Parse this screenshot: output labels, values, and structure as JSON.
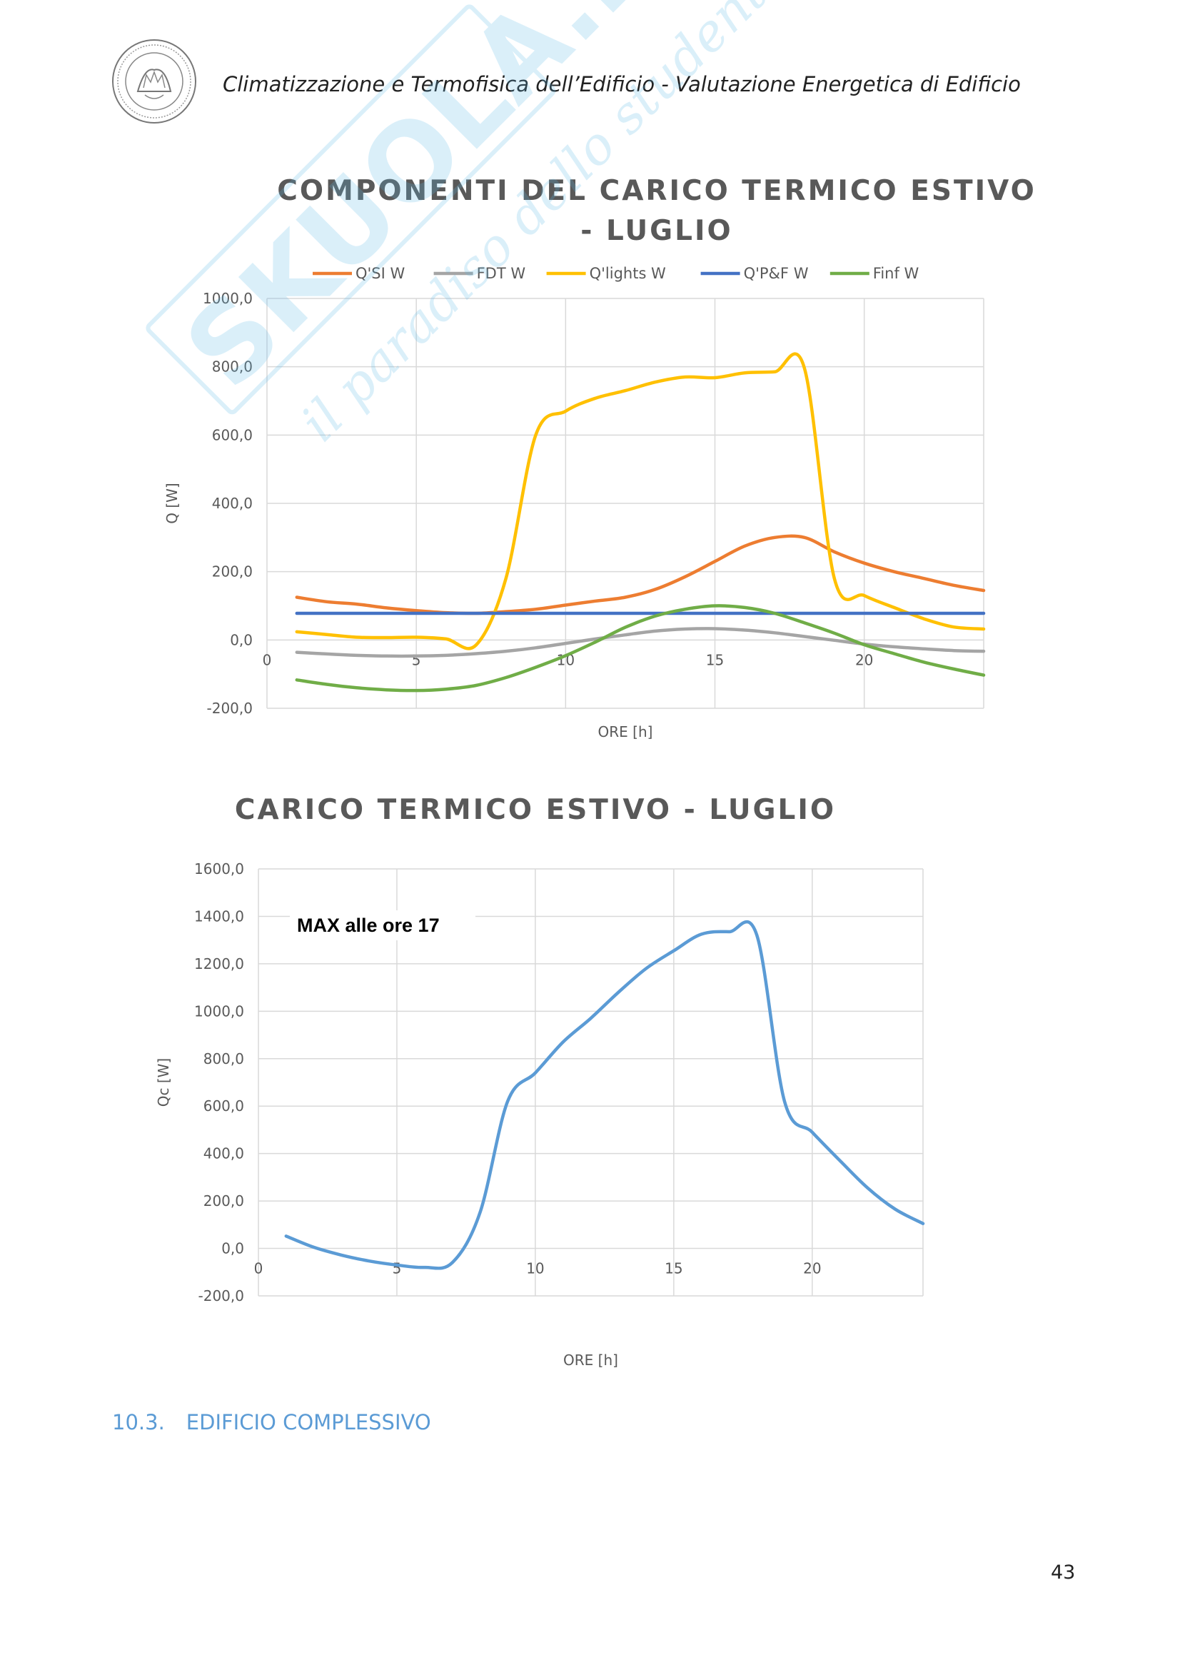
{
  "header": {
    "title": "Climatizzazione e Termofisica dell’Edificio - Valutazione Energetica di Edificio"
  },
  "watermark": {
    "brand": "SKUOLA.net",
    "tagline": "il paradiso dello studente",
    "color": "#5bb8e8"
  },
  "chart_data": [
    {
      "type": "line",
      "title": "COMPONENTI DEL CARICO TERMICO ESTIVO - LUGLIO",
      "xlabel": "ORE [h]",
      "ylabel": "Q [W]",
      "xlim": [
        0,
        24
      ],
      "ylim": [
        -200,
        1000
      ],
      "x_ticks": [
        "0",
        "5",
        "10",
        "15",
        "20"
      ],
      "y_ticks": [
        "1000,0",
        "800,0",
        "600,0",
        "400,0",
        "200,0",
        "0,0",
        "-200,0"
      ],
      "grid": true,
      "legend_position": "top",
      "x": [
        1,
        2,
        3,
        4,
        5,
        6,
        7,
        8,
        9,
        10,
        11,
        12,
        13,
        14,
        15,
        16,
        17,
        18,
        19,
        20,
        21,
        22,
        23,
        24
      ],
      "series": [
        {
          "name": "Q'SI W",
          "color": "#ed7d31",
          "values": [
            125,
            112,
            105,
            94,
            86,
            80,
            78,
            83,
            90,
            102,
            114,
            125,
            148,
            185,
            230,
            275,
            300,
            300,
            258,
            225,
            200,
            180,
            160,
            145
          ]
        },
        {
          "name": "FDT W",
          "color": "#a5a5a5",
          "values": [
            -36,
            -41,
            -45,
            -47,
            -47,
            -45,
            -40,
            -33,
            -23,
            -10,
            3,
            15,
            26,
            32,
            33,
            29,
            21,
            10,
            -1,
            -12,
            -20,
            -26,
            -31,
            -33
          ]
        },
        {
          "name": "Q'lights W",
          "color": "#ffc000",
          "values": [
            24,
            16,
            8,
            7,
            8,
            3,
            -15,
            180,
            600,
            670,
            708,
            730,
            755,
            770,
            768,
            782,
            785,
            795,
            180,
            130,
            95,
            62,
            38,
            32
          ]
        },
        {
          "name": "Q'P&F W",
          "color": "#4472c4",
          "values": [
            78,
            78,
            78,
            78,
            78,
            78,
            78,
            78,
            78,
            78,
            78,
            78,
            78,
            78,
            78,
            78,
            78,
            78,
            78,
            78,
            78,
            78,
            78,
            78
          ]
        },
        {
          "name": "Finf W",
          "color": "#70ad47",
          "values": [
            -117,
            -130,
            -140,
            -146,
            -148,
            -144,
            -133,
            -110,
            -80,
            -46,
            -6,
            37,
            70,
            90,
            100,
            95,
            78,
            50,
            20,
            -14,
            -40,
            -65,
            -85,
            -103
          ]
        }
      ]
    },
    {
      "type": "line",
      "title": "CARICO TERMICO ESTIVO - LUGLIO",
      "xlabel": "ORE [h]",
      "ylabel": "Qc [W]",
      "xlim": [
        0,
        24
      ],
      "ylim": [
        -200,
        1600
      ],
      "x_ticks": [
        "0",
        "5",
        "10",
        "15",
        "20"
      ],
      "y_ticks": [
        "1600,0",
        "1400,0",
        "1200,0",
        "1000,0",
        "800,0",
        "600,0",
        "400,0",
        "200,0",
        "0,0",
        "-200,0"
      ],
      "grid": true,
      "annotation": "MAX alle ore 17",
      "x": [
        1,
        2,
        3,
        4,
        5,
        6,
        7,
        8,
        9,
        10,
        11,
        12,
        13,
        14,
        15,
        16,
        17,
        18,
        19,
        20,
        21,
        22,
        23,
        24
      ],
      "series": [
        {
          "color": "#5b9bd5",
          "values": [
            52,
            5,
            -28,
            -53,
            -70,
            -80,
            -60,
            150,
            620,
            740,
            870,
            970,
            1080,
            1180,
            1255,
            1325,
            1335,
            1320,
            620,
            490,
            370,
            255,
            165,
            105
          ]
        }
      ]
    }
  ],
  "section": {
    "number": "10.3.",
    "title": "EDIFICIO COMPLESSIVO"
  },
  "page_number": "43"
}
